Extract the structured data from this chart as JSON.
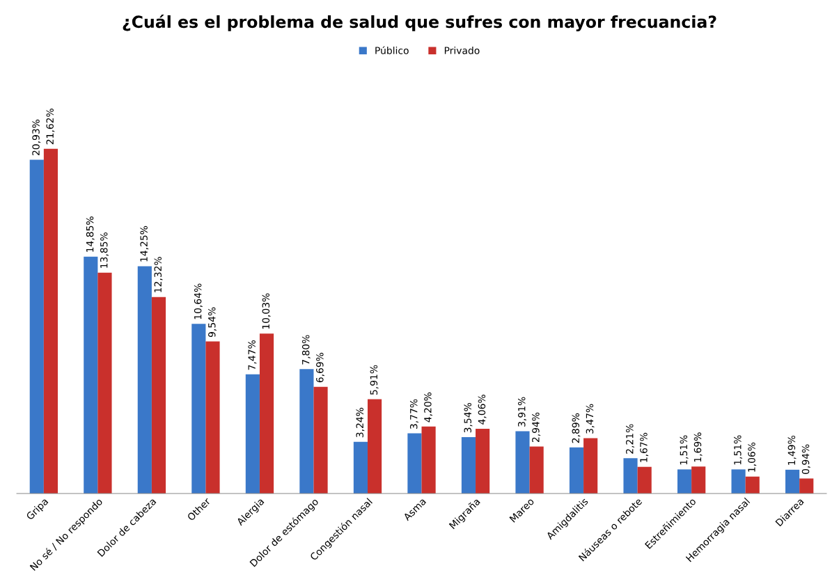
{
  "chart_data": {
    "type": "bar",
    "title": "¿Cuál es el problema de salud que sufres con mayor frecuancia?",
    "categories": [
      "Gripa",
      "No sé / No respondo",
      "Dolor de cabeza",
      "Other",
      "Alergia",
      "Dolor de estómago",
      "Congestión nasal",
      "Asma",
      "Migraña",
      "Mareo",
      "Amigdalitis",
      "Náuseas o rebote",
      "Estreñimiento",
      "Hemorragia nasal",
      "Diarrea"
    ],
    "series": [
      {
        "name": "Público",
        "color": "#3a78c9",
        "values": [
          20.93,
          14.85,
          14.25,
          10.64,
          7.47,
          7.8,
          3.24,
          3.77,
          3.54,
          3.91,
          2.89,
          2.21,
          1.51,
          1.51,
          1.49
        ],
        "value_labels": [
          "20,93%",
          "14,85%",
          "14,25%",
          "10,64%",
          "7,47%",
          "7,80%",
          "3,24%",
          "3,77%",
          "3,54%",
          "3,91%",
          "2,89%",
          "2,21%",
          "1,51%",
          "1,51%",
          "1,49%"
        ]
      },
      {
        "name": "Privado",
        "color": "#c9302c",
        "values": [
          21.62,
          13.85,
          12.32,
          9.54,
          10.03,
          6.69,
          5.91,
          4.2,
          4.06,
          2.94,
          3.47,
          1.67,
          1.69,
          1.06,
          0.94
        ],
        "value_labels": [
          "21,62%",
          "13,85%",
          "12,32%",
          "9,54%",
          "10,03%",
          "6,69%",
          "5,91%",
          "4,20%",
          "4,06%",
          "2,94%",
          "3,47%",
          "1,67%",
          "1,69%",
          "1,06%",
          "0,94%"
        ]
      }
    ],
    "legend": "top"
  }
}
